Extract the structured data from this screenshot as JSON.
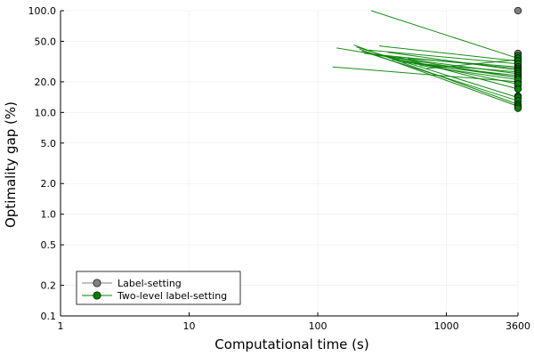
{
  "chart_data": {
    "type": "line",
    "title": "",
    "xlabel": "Computational time (s)",
    "ylabel": "Optimality gap (%)",
    "xscale": "log10",
    "yscale": "log10",
    "xlim": [
      1,
      3600
    ],
    "ylim": [
      0.1,
      100
    ],
    "xticks": [
      {
        "value": 1,
        "label": "1"
      },
      {
        "value": 10,
        "label": "10"
      },
      {
        "value": 100,
        "label": "100"
      },
      {
        "value": 1000,
        "label": "1000"
      },
      {
        "value": 3600,
        "label": "3600"
      }
    ],
    "yticks": [
      {
        "value": 0.1,
        "label": "0.1"
      },
      {
        "value": 0.2,
        "label": "0.2"
      },
      {
        "value": 0.5,
        "label": "0.5"
      },
      {
        "value": 1,
        "label": "1.0"
      },
      {
        "value": 2,
        "label": "2.0"
      },
      {
        "value": 5,
        "label": "5.0"
      },
      {
        "value": 10,
        "label": "10.0"
      },
      {
        "value": 20,
        "label": "20.0"
      },
      {
        "value": 50,
        "label": "50.0"
      },
      {
        "value": 100,
        "label": "100.0"
      }
    ],
    "grid": true,
    "legend_position": "bottom-left",
    "series": [
      {
        "name": "Label-setting",
        "color": "#808080",
        "points": [
          {
            "x": 3600,
            "y": 100
          },
          {
            "x": 3600,
            "y": 38
          },
          {
            "x": 3600,
            "y": 35
          },
          {
            "x": 3600,
            "y": 33
          },
          {
            "x": 3600,
            "y": 31
          },
          {
            "x": 3600,
            "y": 29
          },
          {
            "x": 3600,
            "y": 27.5
          },
          {
            "x": 3600,
            "y": 26
          },
          {
            "x": 3600,
            "y": 24.5
          },
          {
            "x": 3600,
            "y": 23
          },
          {
            "x": 3600,
            "y": 21.5
          },
          {
            "x": 3600,
            "y": 20
          },
          {
            "x": 3600,
            "y": 18.5
          }
        ]
      },
      {
        "name": "Two-level label-setting",
        "color": "#008000",
        "lines": [
          {
            "x": [
              260,
              3600
            ],
            "y": [
              100,
              34
            ]
          },
          {
            "x": [
              140,
              3600
            ],
            "y": [
              43,
              22
            ]
          },
          {
            "x": [
              130,
              3600
            ],
            "y": [
              28,
              20
            ]
          },
          {
            "x": [
              190,
              3600
            ],
            "y": [
              46,
              12
            ]
          },
          {
            "x": [
              200,
              3600
            ],
            "y": [
              44,
              14
            ]
          },
          {
            "x": [
              210,
              3600
            ],
            "y": [
              42,
              11.5
            ]
          },
          {
            "x": [
              220,
              3600
            ],
            "y": [
              40,
              13
            ]
          },
          {
            "x": [
              230,
              3600
            ],
            "y": [
              38,
              27
            ]
          },
          {
            "x": [
              250,
              3600
            ],
            "y": [
              41,
              30
            ]
          },
          {
            "x": [
              270,
              3600
            ],
            "y": [
              37,
              24
            ]
          },
          {
            "x": [
              300,
              3600
            ],
            "y": [
              45,
              32
            ]
          },
          {
            "x": [
              320,
              3600
            ],
            "y": [
              36,
              19
            ]
          },
          {
            "x": [
              350,
              3600
            ],
            "y": [
              39,
              26
            ]
          },
          {
            "x": [
              380,
              3600
            ],
            "y": [
              33,
              22
            ]
          },
          {
            "x": [
              420,
              3600
            ],
            "y": [
              35,
              17
            ]
          },
          {
            "x": [
              460,
              3600
            ],
            "y": [
              31,
              25
            ]
          },
          {
            "x": [
              500,
              3600
            ],
            "y": [
              34,
              28
            ]
          },
          {
            "x": [
              560,
              3600
            ],
            "y": [
              30,
              23
            ]
          },
          {
            "x": [
              620,
              3600
            ],
            "y": [
              29,
              21
            ]
          },
          {
            "x": [
              700,
              3600
            ],
            "y": [
              27,
              33
            ]
          }
        ],
        "points": [
          {
            "x": 3600,
            "y": 36
          },
          {
            "x": 3600,
            "y": 34
          },
          {
            "x": 3600,
            "y": 32
          },
          {
            "x": 3600,
            "y": 30
          },
          {
            "x": 3600,
            "y": 28
          },
          {
            "x": 3600,
            "y": 27
          },
          {
            "x": 3600,
            "y": 26
          },
          {
            "x": 3600,
            "y": 25
          },
          {
            "x": 3600,
            "y": 24
          },
          {
            "x": 3600,
            "y": 23
          },
          {
            "x": 3600,
            "y": 22
          },
          {
            "x": 3600,
            "y": 21
          },
          {
            "x": 3600,
            "y": 19
          },
          {
            "x": 3600,
            "y": 17
          },
          {
            "x": 3600,
            "y": 14.5
          },
          {
            "x": 3600,
            "y": 14
          },
          {
            "x": 3600,
            "y": 13
          },
          {
            "x": 3600,
            "y": 12
          },
          {
            "x": 3600,
            "y": 11.5
          },
          {
            "x": 3600,
            "y": 11
          }
        ]
      }
    ]
  }
}
